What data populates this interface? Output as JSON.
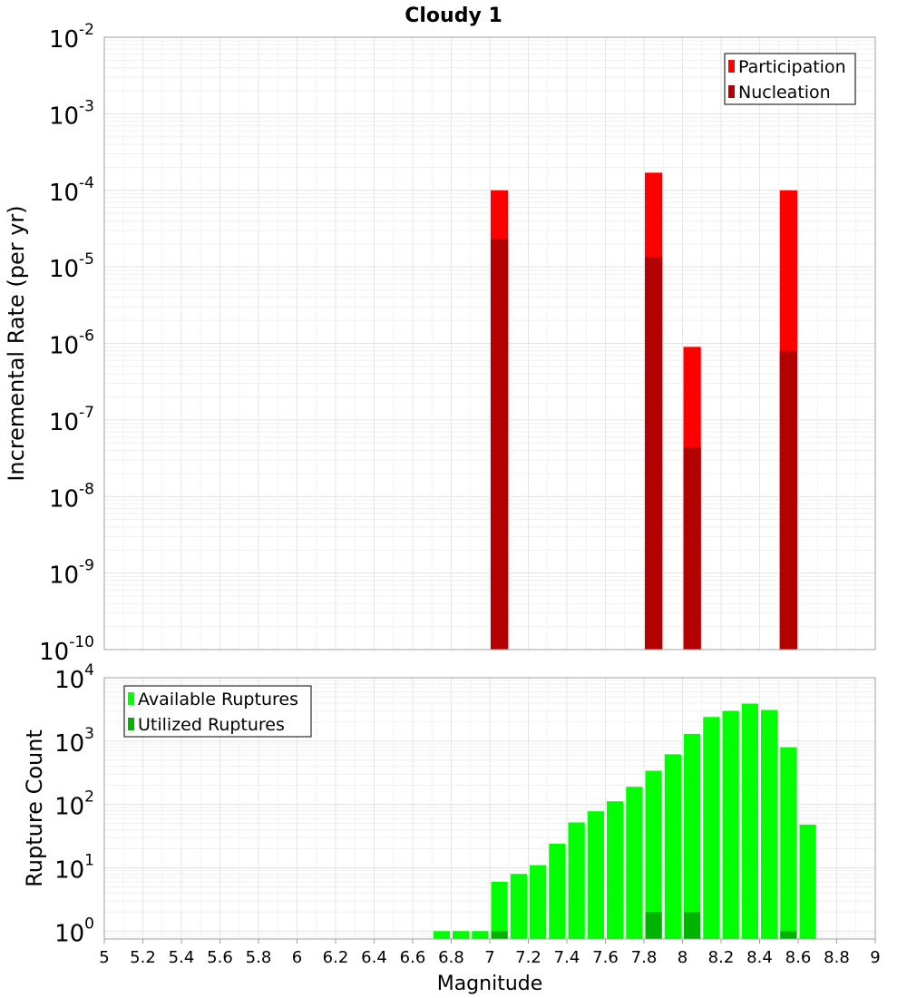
{
  "title": "Cloudy 1",
  "xlabel": "Magnitude",
  "chart_data": [
    {
      "type": "bar",
      "ylabel": "Incremental Rate (per yr)",
      "yscale": "log",
      "ylim": [
        1e-10,
        0.01
      ],
      "xlim": [
        5,
        9
      ],
      "bin_width": 0.1,
      "legend_position": "top-right",
      "grid": true,
      "series": [
        {
          "name": "Participation",
          "color": "#ff0000",
          "points": [
            {
              "x": 7.05,
              "y": 0.0001
            },
            {
              "x": 7.85,
              "y": 0.00017
            },
            {
              "x": 8.05,
              "y": 9e-07
            },
            {
              "x": 8.55,
              "y": 0.0001
            }
          ]
        },
        {
          "name": "Nucleation",
          "color": "#b30000",
          "points": [
            {
              "x": 7.05,
              "y": 2.3e-05
            },
            {
              "x": 7.85,
              "y": 1.35e-05
            },
            {
              "x": 8.05,
              "y": 4.4e-08
            },
            {
              "x": 8.55,
              "y": 8e-07
            }
          ]
        }
      ]
    },
    {
      "type": "bar",
      "ylabel": "Rupture Count",
      "yscale": "log",
      "ylim": [
        0.75,
        10000
      ],
      "xlim": [
        5,
        9
      ],
      "bin_width": 0.1,
      "legend_position": "top-left",
      "grid": true,
      "xticks": [
        "5",
        "5.2",
        "5.4",
        "5.6",
        "5.8",
        "6",
        "6.2",
        "6.4",
        "6.6",
        "6.8",
        "7",
        "7.2",
        "7.4",
        "7.6",
        "7.8",
        "8",
        "8.2",
        "8.4",
        "8.6",
        "8.8",
        "9"
      ],
      "series": [
        {
          "name": "Available Ruptures",
          "color": "#00ff00",
          "points": [
            {
              "x": 6.75,
              "y": 1
            },
            {
              "x": 6.85,
              "y": 1
            },
            {
              "x": 6.95,
              "y": 1
            },
            {
              "x": 7.05,
              "y": 6
            },
            {
              "x": 7.15,
              "y": 8
            },
            {
              "x": 7.25,
              "y": 11
            },
            {
              "x": 7.35,
              "y": 24
            },
            {
              "x": 7.45,
              "y": 52
            },
            {
              "x": 7.55,
              "y": 78
            },
            {
              "x": 7.65,
              "y": 112
            },
            {
              "x": 7.75,
              "y": 190
            },
            {
              "x": 7.85,
              "y": 340
            },
            {
              "x": 7.95,
              "y": 620
            },
            {
              "x": 8.05,
              "y": 1300
            },
            {
              "x": 8.15,
              "y": 2400
            },
            {
              "x": 8.25,
              "y": 3000
            },
            {
              "x": 8.35,
              "y": 3900
            },
            {
              "x": 8.45,
              "y": 3100
            },
            {
              "x": 8.55,
              "y": 800
            },
            {
              "x": 8.65,
              "y": 48
            }
          ]
        },
        {
          "name": "Utilized Ruptures",
          "color": "#00b300",
          "points": [
            {
              "x": 7.05,
              "y": 1
            },
            {
              "x": 7.85,
              "y": 2
            },
            {
              "x": 8.05,
              "y": 2
            },
            {
              "x": 8.55,
              "y": 1
            }
          ]
        }
      ]
    }
  ]
}
